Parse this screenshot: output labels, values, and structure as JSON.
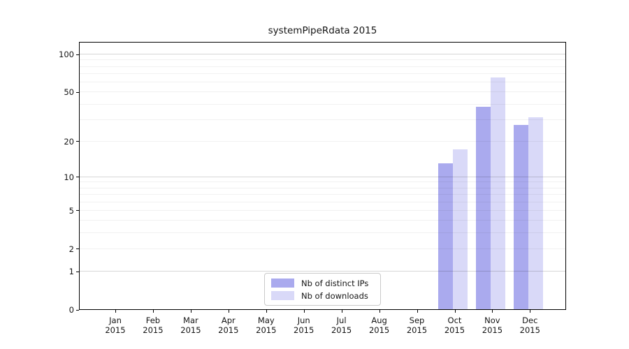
{
  "chart_data": {
    "type": "bar",
    "title": "systemPipeRdata 2015",
    "categories": [
      "Jan",
      "Feb",
      "Mar",
      "Apr",
      "May",
      "Jun",
      "Jul",
      "Aug",
      "Sep",
      "Oct",
      "Nov",
      "Dec"
    ],
    "x_year_label": "2015",
    "series": [
      {
        "name": "Nb of distinct IPs",
        "color": "#aaaaee",
        "values": [
          0,
          0,
          0,
          0,
          0,
          0,
          0,
          0,
          0,
          13,
          38,
          27
        ]
      },
      {
        "name": "Nb of downloads",
        "color": "#d9d9f8",
        "values": [
          0,
          0,
          0,
          0,
          0,
          0,
          0,
          0,
          0,
          17,
          65,
          31
        ]
      }
    ],
    "y_axis": {
      "scale": "log1p",
      "tick_values": [
        0,
        1,
        2,
        5,
        10,
        20,
        50,
        100
      ],
      "minor_grid_values": [
        2,
        3,
        4,
        5,
        6,
        7,
        8,
        9,
        20,
        30,
        40,
        50,
        60,
        70,
        80,
        90
      ],
      "major_grid_values": [
        1,
        10,
        100
      ],
      "ylim_top": 126
    },
    "legend_position": "lower center",
    "grid": true,
    "colors": {
      "axis": "#000000",
      "text": "#141414",
      "background": "#ffffff"
    }
  }
}
